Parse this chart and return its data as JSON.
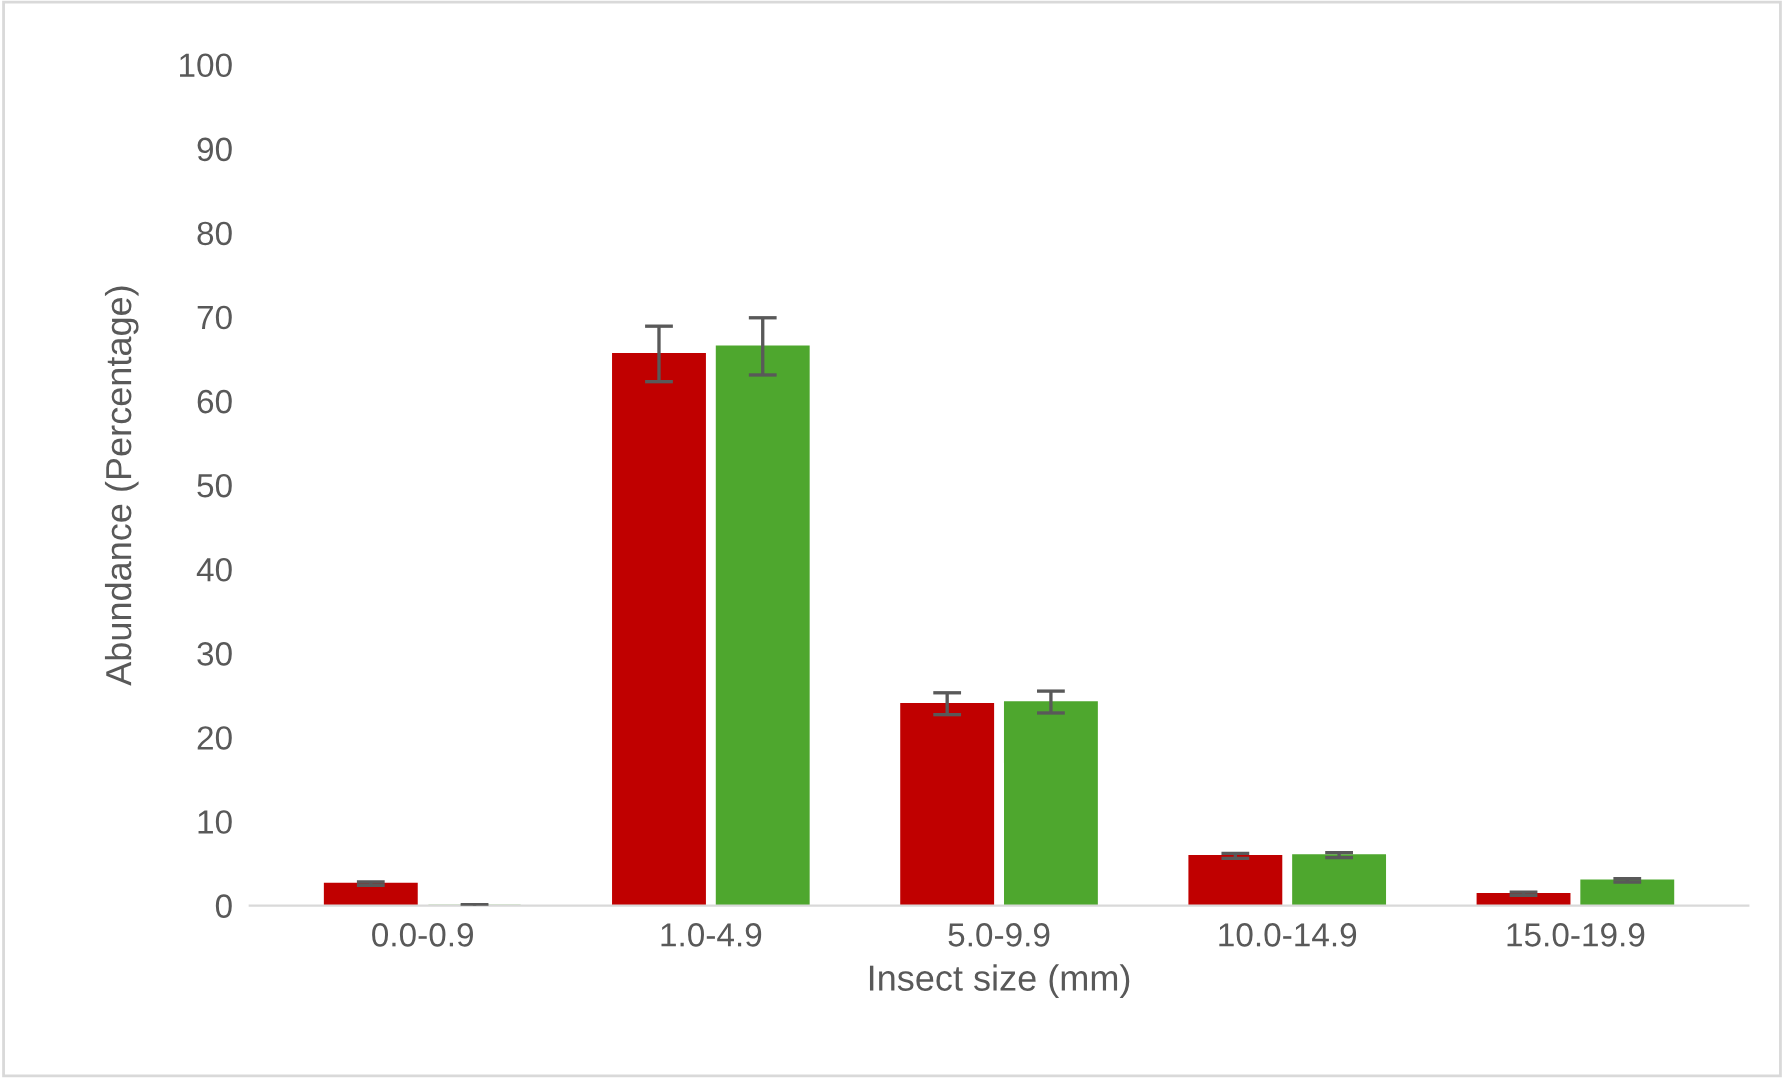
{
  "chart_data": {
    "type": "bar",
    "xlabel": "Insect size (mm)",
    "ylabel": "Abundance (Percentage)",
    "categories": [
      "0.0-0.9",
      "1.0-4.9",
      "5.0-9.9",
      "10.0-14.9",
      "15.0-19.9"
    ],
    "series": [
      {
        "color": "#c00000",
        "values": [
          2.6,
          65.6,
          24.0,
          5.9,
          1.4
        ],
        "errors": [
          0.2,
          3.3,
          1.3,
          0.3,
          0.2
        ]
      },
      {
        "color": "#4ea72e",
        "values": [
          0,
          66.5,
          24.2,
          6.0,
          3.0
        ],
        "errors": [
          0.1,
          3.4,
          1.3,
          0.3,
          0.2
        ]
      }
    ],
    "ylim": [
      0,
      100
    ],
    "yticks": [
      0,
      10,
      20,
      30,
      40,
      50,
      60,
      70,
      80,
      90,
      100
    ],
    "grid": false
  }
}
